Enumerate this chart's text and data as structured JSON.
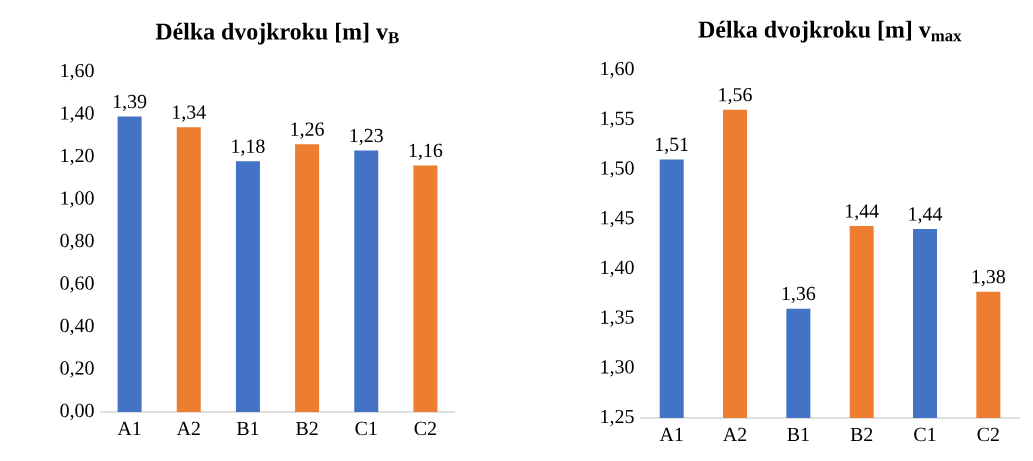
{
  "chart_data": [
    {
      "type": "bar",
      "title": "Délka dvojkroku [m] v$_{B}$",
      "categories": [
        "A1",
        "A2",
        "B1",
        "B2",
        "C1",
        "C2"
      ],
      "values": [
        1.39,
        1.34,
        1.18,
        1.26,
        1.23,
        1.16
      ],
      "value_labels": [
        "1,39",
        "1,34",
        "1,18",
        "1,26",
        "1,23",
        "1,16"
      ],
      "colors": [
        "#4472c4",
        "#ed7d31",
        "#4472c4",
        "#ed7d31",
        "#4472c4",
        "#ed7d31"
      ],
      "ylim": [
        0,
        1.6
      ],
      "yticks": [
        {
          "value": 0,
          "label": "0,00"
        },
        {
          "value": 0.2,
          "label": "0,20"
        },
        {
          "value": 0.4,
          "label": "0,40"
        },
        {
          "value": 0.6,
          "label": "0,60"
        },
        {
          "value": 0.8,
          "label": "0,80"
        },
        {
          "value": 1.0,
          "label": "1,00"
        },
        {
          "value": 1.2,
          "label": "1,20"
        },
        {
          "value": 1.4,
          "label": "1,40"
        },
        {
          "value": 1.6,
          "label": "1,60"
        }
      ],
      "grid": false
    },
    {
      "type": "bar",
      "title": "Délka dvojkroku [m] v$_{max}$",
      "categories": [
        "A1",
        "A2",
        "B1",
        "B2",
        "C1",
        "C2"
      ],
      "values": [
        1.51,
        1.56,
        1.36,
        1.443,
        1.44,
        1.377
      ],
      "value_labels": [
        "1,51",
        "1,56",
        "1,36",
        "1,44",
        "1,44",
        "1,38"
      ],
      "colors": [
        "#4472c4",
        "#ed7d31",
        "#4472c4",
        "#ed7d31",
        "#4472c4",
        "#ed7d31"
      ],
      "ylim": [
        1.25,
        1.6
      ],
      "yticks": [
        {
          "value": 1.25,
          "label": "1,25"
        },
        {
          "value": 1.3,
          "label": "1,30"
        },
        {
          "value": 1.35,
          "label": "1,35"
        },
        {
          "value": 1.4,
          "label": "1,40"
        },
        {
          "value": 1.45,
          "label": "1,45"
        },
        {
          "value": 1.5,
          "label": "1,50"
        },
        {
          "value": 1.55,
          "label": "1,55"
        },
        {
          "value": 1.6,
          "label": "1,60"
        }
      ],
      "grid": false
    }
  ]
}
